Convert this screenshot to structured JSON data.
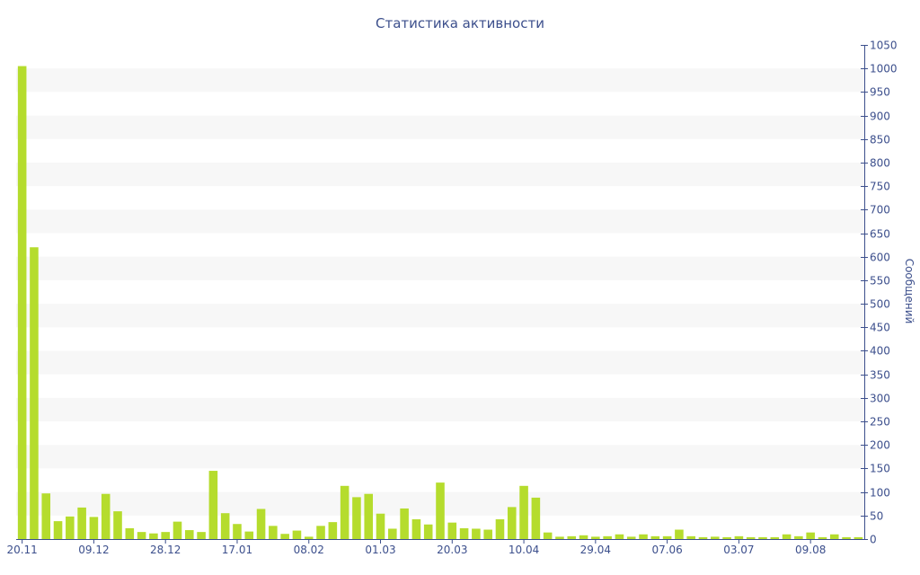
{
  "chart_data": {
    "type": "bar",
    "title": "Статистика активности",
    "xlabel": "",
    "ylabel": "Сообщений",
    "ylim": [
      0,
      1050
    ],
    "y_ticks": [
      0,
      50,
      100,
      150,
      200,
      250,
      300,
      350,
      400,
      450,
      500,
      550,
      600,
      650,
      700,
      750,
      800,
      850,
      900,
      950,
      1000,
      1050
    ],
    "y_axis_side": "right",
    "grid": "alternating horizontal bands",
    "x_tick_labels": [
      "20.11",
      "09.12",
      "28.12",
      "17.01",
      "08.02",
      "01.03",
      "20.03",
      "10.04",
      "29.04",
      "07.06",
      "03.07",
      "09.08"
    ],
    "x_tick_positions": [
      0,
      6,
      12,
      18,
      24,
      30,
      36,
      42,
      48,
      54,
      60,
      66
    ],
    "values": [
      1005,
      620,
      97,
      38,
      48,
      67,
      47,
      96,
      59,
      23,
      15,
      12,
      15,
      37,
      19,
      15,
      145,
      55,
      32,
      16,
      64,
      28,
      11,
      18,
      5,
      28,
      36,
      113,
      89,
      96,
      54,
      22,
      65,
      42,
      31,
      120,
      35,
      23,
      22,
      20,
      42,
      68,
      113,
      88,
      14,
      5,
      6,
      8,
      5,
      6,
      10,
      5,
      10,
      6,
      6,
      20,
      6,
      4,
      5,
      4,
      6,
      4,
      4,
      4,
      10,
      6,
      14,
      4,
      10,
      4,
      4
    ],
    "colors": {
      "bar": "#b5dc2d",
      "band": "#f7f7f7",
      "text": "#3c4f8c",
      "axis": "#3c4f8c"
    }
  }
}
